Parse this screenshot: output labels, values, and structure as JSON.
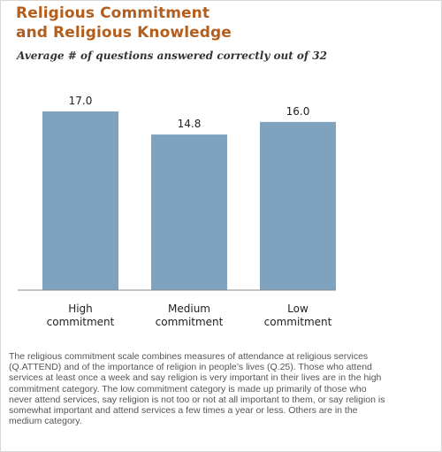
{
  "header": {
    "title_line1": "Religious Commitment",
    "title_line2": "and Religious Knowledge",
    "subtitle": "Average # of questions answered correctly out of 32"
  },
  "chart_data": {
    "type": "bar",
    "categories": [
      [
        "High",
        "commitment"
      ],
      [
        "Medium",
        "commitment"
      ],
      [
        "Low",
        "commitment"
      ]
    ],
    "values": [
      17.0,
      14.8,
      16.0
    ],
    "value_labels": [
      "17.0",
      "14.8",
      "16.0"
    ],
    "bar_color": "#7fa2bf",
    "ylim": [
      0,
      17.5
    ],
    "grid": false,
    "legend": "none"
  },
  "footnote": "The religious commitment scale combines measures of attendance at religious services (Q.ATTEND) and of the importance of religion in people’s lives (Q.25). Those who attend services at least once a week and say religion is very important in their lives are in the high commitment category. The low commitment category is made up primarily of those who never attend services, say religion is not too or not at all important to them, or say religion is somewhat important and attend services a few times a year or less. Others are in the medium category."
}
